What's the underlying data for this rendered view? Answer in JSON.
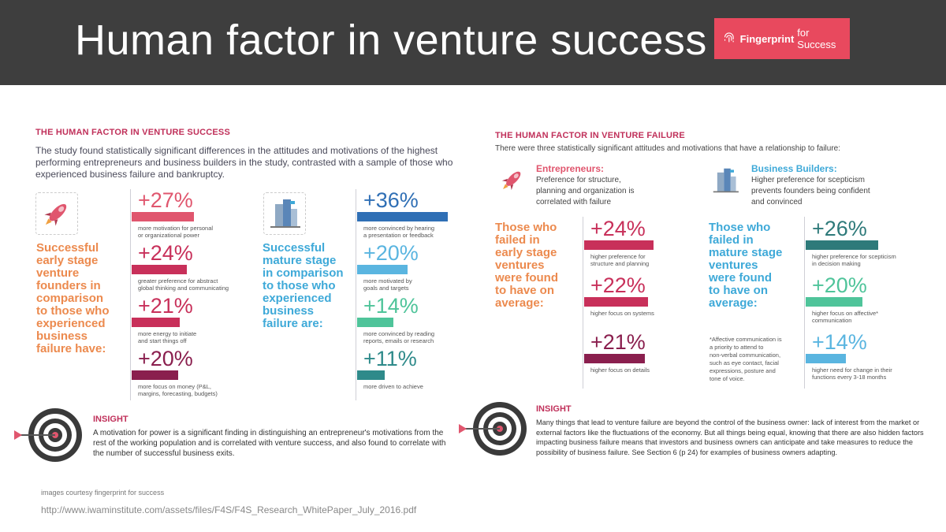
{
  "header": {
    "title": "Human factor in venture success",
    "brand_bold": "Fingerprint",
    "brand_rest": "for Success"
  },
  "left": {
    "section_title": "THE HUMAN FACTOR IN VENTURE SUCCESS",
    "intro": "The study found statistically significant differences in the attitudes and motivations of the highest performing entrepreneurs and business builders in the study, contrasted with a sample of those who experienced business failure and bankruptcy.",
    "founders_heading": [
      "Successful",
      "early stage",
      "venture",
      "founders in",
      "comparison",
      "to those who",
      "experienced",
      "business",
      "failure have:"
    ],
    "founders_stats": [
      {
        "value": "+27%",
        "caption": [
          "more motivation for personal",
          "or organizational power"
        ],
        "fill": 0.88,
        "color": "#e0566e"
      },
      {
        "value": "+24%",
        "caption": [
          "greater preference for abstract",
          "global thinking and communicating"
        ],
        "fill": 0.78,
        "color": "#c8305a"
      },
      {
        "value": "+21%",
        "caption": [
          "more energy to initiate",
          "and start things off"
        ],
        "fill": 0.68,
        "color": "#c8305a"
      },
      {
        "value": "+20%",
        "caption": [
          "more focus on money (P&L,",
          "margins, forecasting, budgets)"
        ],
        "fill": 0.65,
        "color": "#8a1f4e"
      }
    ],
    "builders_heading": [
      "Successful",
      "mature stage",
      "in comparison",
      "to those who",
      "experienced",
      "business",
      "failure are:"
    ],
    "builders_stats": [
      {
        "value": "+36%",
        "caption": [
          "more convinced by hearing",
          "a presentation or feedback"
        ],
        "fill": 1.0,
        "color": "#2f6fb5"
      },
      {
        "value": "+20%",
        "caption": [
          "more motivated by",
          "goals and targets"
        ],
        "fill": 0.56,
        "color": "#5ab5e0"
      },
      {
        "value": "+14%",
        "caption": [
          "more convinced by reading",
          "reports, emails or research"
        ],
        "fill": 0.4,
        "color": "#4fc49a"
      },
      {
        "value": "+11%",
        "caption": [
          "more driven to achieve"
        ],
        "fill": 0.3,
        "color": "#2e8a8a"
      }
    ],
    "insight_title": "INSIGHT",
    "insight_text": [
      "A motivation for power is a significant finding in distinguishing an entrepreneur's motivations from the",
      "rest of the working population and is correlated with venture success, and also found to correlate with",
      "the number of successful business exits."
    ]
  },
  "right": {
    "section_title": "THE HUMAN FACTOR IN VENTURE FAILURE",
    "intro": "There were three statistically significant attitudes and motivations that have a relationship to failure:",
    "entrepreneurs_title": "Entrepreneurs:",
    "entrepreneurs_desc": [
      "Preference for structure,",
      "planning and organization is",
      "correlated with failure"
    ],
    "builders_title": "Business Builders:",
    "builders_desc": [
      "Higher preference for scepticism",
      "prevents founders being confident",
      "and convinced"
    ],
    "early_heading": [
      "Those who",
      "failed in",
      "early stage",
      "ventures",
      "were found",
      "to have on",
      "average:"
    ],
    "early_stats": [
      {
        "value": "+24%",
        "caption": [
          "higher preference for",
          "structure and planning"
        ],
        "fill": 1.0,
        "color": "#c8305a"
      },
      {
        "value": "+22%",
        "caption": [
          "higher focus on systems"
        ],
        "fill": 0.92,
        "color": "#c8305a"
      },
      {
        "value": "+21%",
        "caption": [
          "higher focus on details"
        ],
        "fill": 0.88,
        "color": "#8a1f4e"
      }
    ],
    "mature_heading": [
      "Those who",
      "failed in",
      "mature stage",
      "ventures",
      "were found",
      "to have on",
      "average:"
    ],
    "mature_stats": [
      {
        "value": "+26%",
        "caption": [
          "higher preference for scepticism",
          "in decision making"
        ],
        "fill": 1.0,
        "color": "#2e7a7a"
      },
      {
        "value": "+20%",
        "caption": [
          "higher focus on affective*",
          "communication"
        ],
        "fill": 0.78,
        "color": "#4fc49a"
      },
      {
        "value": "+14%",
        "caption": [
          "higher need for change in their",
          "functions every 3-18 months"
        ],
        "fill": 0.55,
        "color": "#5ab5e0"
      }
    ],
    "note": [
      "*Affective communication is",
      "a priority to attend to",
      "non-verbal communication,",
      "such as eye contact, facial",
      "expressions, posture and",
      "tone of voice."
    ],
    "insight_title": "INSIGHT",
    "insight_text": [
      "Many things that lead to venture failure are beyond the control of the business owner: lack of interest from the market or",
      "external factors like the fluctuations of the economy. But all things being equal, knowing that there are also hidden factors",
      "impacting business failure means that investors and business owners can anticipate and take measures to reduce the",
      "possibility of business failure. See Section 6 (p 24) for examples of business owners adapting."
    ]
  },
  "footer": {
    "credit": "images courtesy fingerprint for success",
    "url": "http://www.iwaminstitute.com/assets/files/F4S/F4S_Research_WhitePaper_July_2016.pdf"
  }
}
